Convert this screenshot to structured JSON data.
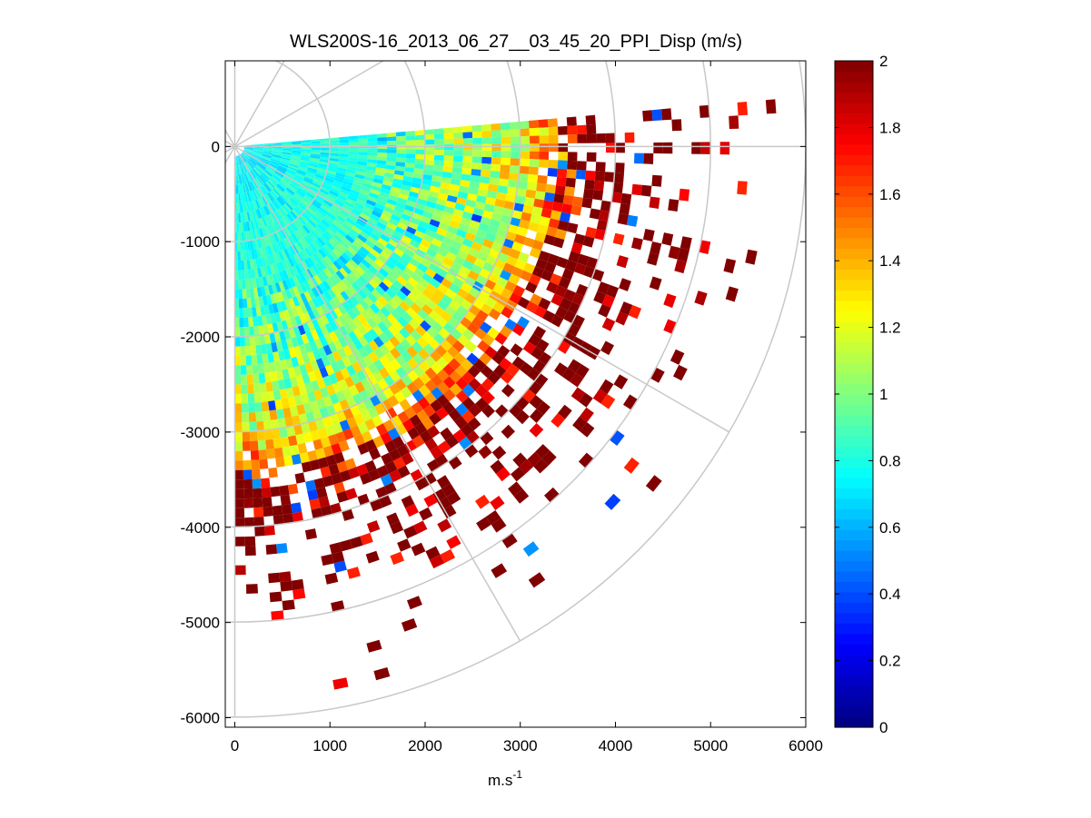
{
  "chart_data": {
    "type": "heatmap",
    "title": "WLS200S-16_2013_06_27__03_45_20_PPI_Disp (m/s)",
    "xlabel": "m.s",
    "xlabel_superscript": "-1",
    "ylabel": "",
    "xlim": [
      -100,
      6000
    ],
    "ylim": [
      -6100,
      900
    ],
    "xticks": [
      0,
      1000,
      2000,
      3000,
      4000,
      5000,
      6000
    ],
    "xtick_labels": [
      "0",
      "1000",
      "2000",
      "3000",
      "4000",
      "5000",
      "6000"
    ],
    "yticks": [
      0,
      -1000,
      -2000,
      -3000,
      -4000,
      -5000,
      -6000
    ],
    "ytick_labels": [
      "0",
      "-1000",
      "-2000",
      "-3000",
      "-4000",
      "-5000",
      "-6000"
    ],
    "polar_grid": {
      "origin": [
        0,
        0
      ],
      "ring_radii": [
        1000,
        2000,
        3000,
        4000,
        5000,
        6000
      ],
      "spoke_angles_deg": [
        0,
        30,
        60,
        90,
        120,
        150,
        180,
        210,
        240,
        270,
        300,
        330
      ],
      "color": "#c8c8c8"
    },
    "scan": {
      "azimuth_start_deg": 5,
      "azimuth_end_deg": -90,
      "range_gate_m": 100,
      "max_range_m": 5800,
      "beam_count": 64,
      "description_of_pattern": "values near 0.7-0.9 close to the lidar, rising to 1.0-1.2 mid-range and saturating near 2 beyond ~3500 m; far gates sparse"
    },
    "colorbar": {
      "colormap": "jet",
      "clim": [
        0,
        2
      ],
      "ticks": [
        0,
        0.2,
        0.4,
        0.6,
        0.8,
        1,
        1.2,
        1.4,
        1.6,
        1.8,
        2
      ],
      "tick_labels": [
        "0",
        "0.2",
        "0.4",
        "0.6",
        "0.8",
        "1",
        "1.2",
        "1.4",
        "1.6",
        "1.8",
        "2"
      ]
    },
    "grid": false,
    "legend": "none"
  }
}
